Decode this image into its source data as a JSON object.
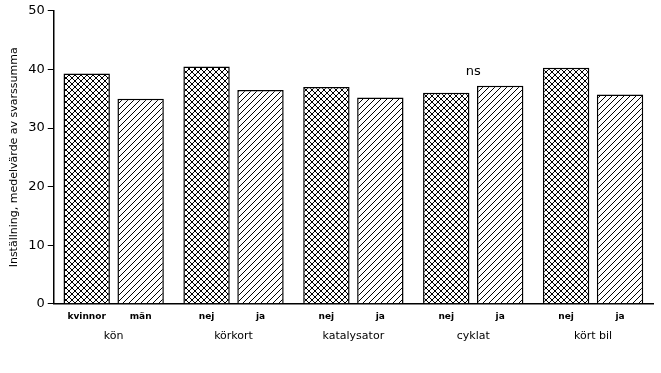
{
  "chart_data": {
    "type": "bar",
    "y_label": "Inställning, medelvärde av svarssumma",
    "groups": [
      {
        "label": "kön",
        "categories": [
          "kvinnor",
          "män"
        ],
        "values": [
          39.3,
          35.0
        ]
      },
      {
        "label": "körkort",
        "categories": [
          "nej",
          "ja"
        ],
        "values": [
          40.5,
          36.5
        ]
      },
      {
        "label": "katalysator",
        "categories": [
          "nej",
          "ja"
        ],
        "values": [
          37.0,
          35.2
        ]
      },
      {
        "label": "cyklat",
        "categories": [
          "nej",
          "ja"
        ],
        "values": [
          36.0,
          37.2
        ]
      },
      {
        "label": "kört bil",
        "categories": [
          "nej",
          "ja"
        ],
        "values": [
          40.3,
          35.7
        ]
      }
    ],
    "annotations": [
      {
        "text": "ns",
        "group": "cyklat"
      }
    ],
    "color": "#000000",
    "ylim": [
      0,
      50
    ],
    "yticks": [
      0,
      10,
      20,
      30,
      40,
      50
    ],
    "grid": false
  }
}
